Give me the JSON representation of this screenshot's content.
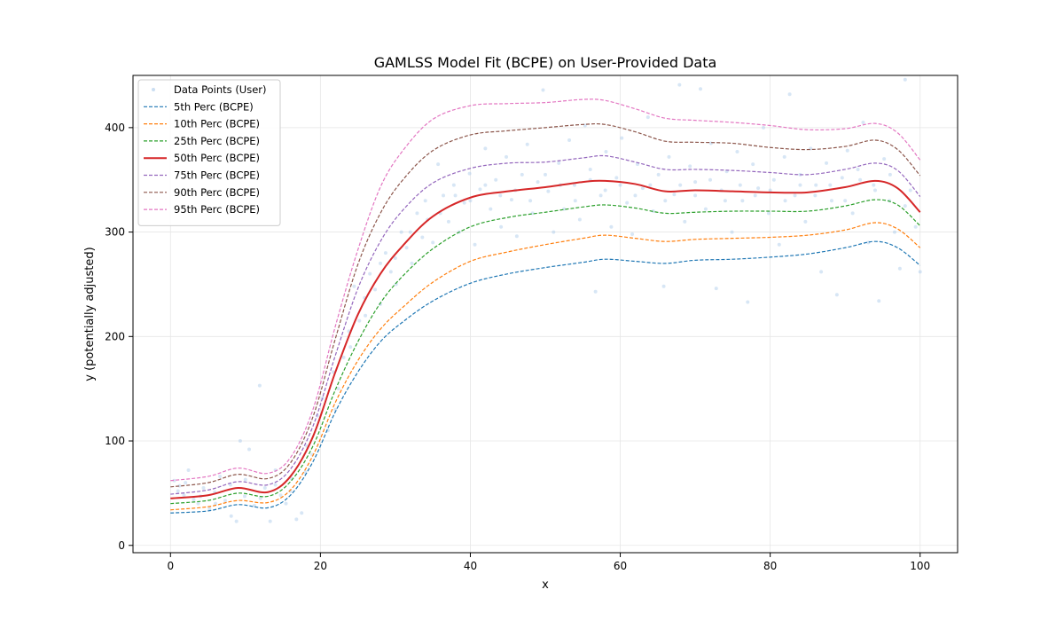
{
  "chart_data": {
    "type": "line",
    "title": "GAMLSS Model Fit (BCPE) on User-Provided Data",
    "xlabel": "x",
    "ylabel": "y (potentially adjusted)",
    "xlim": [
      -5,
      105
    ],
    "ylim": [
      -7,
      450
    ],
    "xticks": [
      0,
      20,
      40,
      60,
      80,
      100
    ],
    "yticks": [
      0,
      100,
      200,
      300,
      400
    ],
    "grid": true,
    "legend_position": "top-left",
    "x": [
      0,
      5,
      9,
      13,
      16,
      19,
      22,
      25,
      28,
      31,
      35,
      40,
      45,
      50,
      55,
      58,
      62,
      66,
      70,
      75,
      80,
      85,
      90,
      94,
      97,
      100
    ],
    "series": [
      {
        "name": "5th Perc (BCPE)",
        "color": "#1f77b4",
        "style": "dashed",
        "width": 1.2,
        "values": [
          31,
          33,
          39,
          36,
          48,
          80,
          128,
          166,
          195,
          214,
          234,
          251,
          260,
          266,
          271,
          274,
          272,
          270,
          273,
          274,
          276,
          279,
          285,
          291,
          285,
          268
        ]
      },
      {
        "name": "10th Perc (BCPE)",
        "color": "#ff7f0e",
        "style": "dashed",
        "width": 1.2,
        "values": [
          34,
          37,
          43,
          41,
          53,
          86,
          137,
          177,
          207,
          228,
          252,
          272,
          281,
          288,
          294,
          297,
          294,
          291,
          293,
          294,
          295,
          297,
          302,
          309,
          303,
          285
        ]
      },
      {
        "name": "25th Perc (BCPE)",
        "color": "#2ca02c",
        "style": "dashed",
        "width": 1.2,
        "values": [
          40,
          43,
          50,
          47,
          61,
          95,
          149,
          195,
          232,
          258,
          284,
          305,
          314,
          319,
          324,
          326,
          323,
          318,
          319,
          320,
          320,
          320,
          325,
          331,
          326,
          306
        ]
      },
      {
        "name": "50th Perc (BCPE)",
        "color": "#d62728",
        "style": "solid",
        "width": 2,
        "values": [
          45,
          48,
          55,
          51,
          66,
          104,
          166,
          221,
          260,
          287,
          315,
          333,
          339,
          343,
          348,
          349,
          346,
          339,
          340,
          339,
          338,
          338,
          343,
          349,
          342,
          319
        ]
      },
      {
        "name": "75th Perc (BCPE)",
        "color": "#9467bd",
        "style": "dashed",
        "width": 1.2,
        "values": [
          49,
          53,
          61,
          58,
          73,
          114,
          182,
          246,
          291,
          321,
          347,
          361,
          366,
          367,
          371,
          373,
          367,
          360,
          360,
          359,
          357,
          355,
          360,
          366,
          359,
          334
        ]
      },
      {
        "name": "90th Perc (BCPE)",
        "color": "#8c564b",
        "style": "dashed",
        "width": 1.2,
        "values": [
          56,
          60,
          68,
          64,
          79,
          123,
          198,
          269,
          318,
          350,
          378,
          393,
          397,
          400,
          403,
          403,
          396,
          387,
          386,
          385,
          381,
          379,
          382,
          388,
          379,
          354
        ]
      },
      {
        "name": "95th Perc (BCPE)",
        "color": "#e377c2",
        "style": "dashed",
        "width": 1.2,
        "values": [
          62,
          66,
          74,
          69,
          84,
          130,
          210,
          283,
          343,
          378,
          408,
          421,
          423,
          424,
          427,
          426,
          418,
          409,
          407,
          405,
          402,
          398,
          399,
          404,
          395,
          369
        ]
      }
    ],
    "scatter": {
      "name": "Data Points (User)",
      "color": "#a6c8e8",
      "points": [
        [
          0.5,
          62
        ],
        [
          1.2,
          57
        ],
        [
          1.8,
          48
        ],
        [
          2.4,
          72
        ],
        [
          3.1,
          44
        ],
        [
          3.7,
          40
        ],
        [
          4.4,
          55
        ],
        [
          5.2,
          35
        ],
        [
          5.9,
          51
        ],
        [
          6.6,
          66
        ],
        [
          7.3,
          43
        ],
        [
          8.1,
          28
        ],
        [
          8.8,
          23
        ],
        [
          9.3,
          100
        ],
        [
          9.9,
          47
        ],
        [
          10.5,
          92
        ],
        [
          11.2,
          38
        ],
        [
          11.9,
          153
        ],
        [
          12.6,
          55
        ],
        [
          13.3,
          23
        ],
        [
          14.0,
          72
        ],
        [
          14.7,
          48
        ],
        [
          15.4,
          40
        ],
        [
          16.1,
          64
        ],
        [
          16.8,
          25
        ],
        [
          17.5,
          31
        ],
        [
          18.2,
          95
        ],
        [
          18.9,
          87
        ],
        [
          19.6,
          124
        ],
        [
          20.3,
          141
        ],
        [
          21.0,
          110
        ],
        [
          21.7,
          166
        ],
        [
          22.4,
          150
        ],
        [
          23.1,
          180
        ],
        [
          23.8,
          205
        ],
        [
          24.5,
          248
        ],
        [
          25.2,
          215
        ],
        [
          25.9,
          237
        ],
        [
          26.6,
          260
        ],
        [
          27.3,
          245
        ],
        [
          28.0,
          231
        ],
        [
          28.7,
          280
        ],
        [
          29.4,
          262
        ],
        [
          30.1,
          250
        ],
        [
          30.8,
          300
        ],
        [
          31.5,
          285
        ],
        [
          32.2,
          270
        ],
        [
          32.9,
          318
        ],
        [
          33.6,
          295
        ],
        [
          34.3,
          312
        ],
        [
          35.0,
          290
        ],
        [
          35.7,
          365
        ],
        [
          36.4,
          335
        ],
        [
          37.1,
          310
        ],
        [
          37.8,
          345
        ],
        [
          38.5,
          300
        ],
        [
          39.2,
          328
        ],
        [
          39.9,
          356
        ],
        [
          40.6,
          288
        ],
        [
          41.3,
          341
        ],
        [
          42.0,
          380
        ],
        [
          42.7,
          322
        ],
        [
          43.4,
          350
        ],
        [
          44.1,
          305
        ],
        [
          44.8,
          372
        ],
        [
          45.5,
          331
        ],
        [
          46.2,
          296
        ],
        [
          46.9,
          355
        ],
        [
          47.6,
          384
        ],
        [
          48.3,
          318
        ],
        [
          49.0,
          348
        ],
        [
          49.7,
          436
        ],
        [
          50.4,
          339
        ],
        [
          51.1,
          300
        ],
        [
          51.8,
          366
        ],
        [
          52.5,
          322
        ],
        [
          53.2,
          388
        ],
        [
          53.9,
          345
        ],
        [
          54.6,
          312
        ],
        [
          55.3,
          402
        ],
        [
          56.0,
          360
        ],
        [
          56.7,
          243
        ],
        [
          57.4,
          335
        ],
        [
          58.1,
          377
        ],
        [
          58.8,
          305
        ],
        [
          59.5,
          352
        ],
        [
          60.2,
          390
        ],
        [
          60.9,
          328
        ],
        [
          61.6,
          298
        ],
        [
          62.3,
          365
        ],
        [
          63.0,
          342
        ],
        [
          63.7,
          410
        ],
        [
          64.4,
          320
        ],
        [
          65.1,
          355
        ],
        [
          65.8,
          248
        ],
        [
          66.5,
          372
        ],
        [
          67.2,
          336
        ],
        [
          67.9,
          441
        ],
        [
          68.6,
          310
        ],
        [
          69.3,
          363
        ],
        [
          70.0,
          348
        ],
        [
          70.7,
          437
        ],
        [
          71.4,
          322
        ],
        [
          72.1,
          385
        ],
        [
          72.8,
          246
        ],
        [
          73.5,
          340
        ],
        [
          74.2,
          358
        ],
        [
          74.9,
          300
        ],
        [
          75.6,
          377
        ],
        [
          76.3,
          330
        ],
        [
          77.0,
          233
        ],
        [
          77.7,
          365
        ],
        [
          78.4,
          342
        ],
        [
          79.1,
          400
        ],
        [
          79.8,
          318
        ],
        [
          80.5,
          350
        ],
        [
          81.2,
          288
        ],
        [
          81.9,
          372
        ],
        [
          82.6,
          432
        ],
        [
          83.3,
          335
        ],
        [
          84.0,
          355
        ],
        [
          84.7,
          310
        ],
        [
          85.4,
          380
        ],
        [
          86.1,
          345
        ],
        [
          86.8,
          262
        ],
        [
          87.5,
          366
        ],
        [
          88.2,
          330
        ],
        [
          88.9,
          240
        ],
        [
          89.6,
          352
        ],
        [
          90.3,
          378
        ],
        [
          91.0,
          318
        ],
        [
          91.7,
          360
        ],
        [
          92.4,
          405
        ],
        [
          93.1,
          290
        ],
        [
          93.8,
          345
        ],
        [
          94.5,
          234
        ],
        [
          95.2,
          370
        ],
        [
          95.9,
          330
        ],
        [
          96.6,
          300
        ],
        [
          97.3,
          265
        ],
        [
          98.0,
          446
        ],
        [
          98.7,
          340
        ],
        [
          99.4,
          305
        ],
        [
          100.0,
          262
        ],
        [
          1.0,
          52
        ],
        [
          2.0,
          60
        ],
        [
          4.0,
          47
        ],
        [
          6.0,
          40
        ],
        [
          8.0,
          58
        ],
        [
          10.0,
          63
        ],
        [
          12.0,
          45
        ],
        [
          14.0,
          58
        ],
        [
          16.0,
          52
        ],
        [
          18.0,
          70
        ],
        [
          22.0,
          130
        ],
        [
          24.0,
          190
        ],
        [
          26.0,
          220
        ],
        [
          28.0,
          270
        ],
        [
          30.0,
          275
        ],
        [
          32.0,
          300
        ],
        [
          34.0,
          330
        ],
        [
          36.0,
          318
        ],
        [
          38.0,
          335
        ],
        [
          40.0,
          330
        ],
        [
          42.0,
          345
        ],
        [
          44.0,
          335
        ],
        [
          46.0,
          340
        ],
        [
          48.0,
          330
        ],
        [
          50.0,
          355
        ],
        [
          52.0,
          345
        ],
        [
          54.0,
          330
        ],
        [
          56.0,
          350
        ],
        [
          58.0,
          340
        ],
        [
          60.0,
          345
        ],
        [
          62.0,
          335
        ],
        [
          64.0,
          345
        ],
        [
          66.0,
          330
        ],
        [
          68.0,
          345
        ],
        [
          70.0,
          335
        ],
        [
          72.0,
          350
        ],
        [
          74.0,
          330
        ],
        [
          76.0,
          345
        ],
        [
          78.0,
          335
        ],
        [
          80.0,
          340
        ],
        [
          82.0,
          330
        ],
        [
          84.0,
          345
        ],
        [
          86.0,
          335
        ],
        [
          88.0,
          345
        ],
        [
          90.0,
          330
        ],
        [
          92.0,
          350
        ],
        [
          94.0,
          340
        ],
        [
          96.0,
          355
        ],
        [
          98.0,
          325
        ]
      ]
    }
  }
}
